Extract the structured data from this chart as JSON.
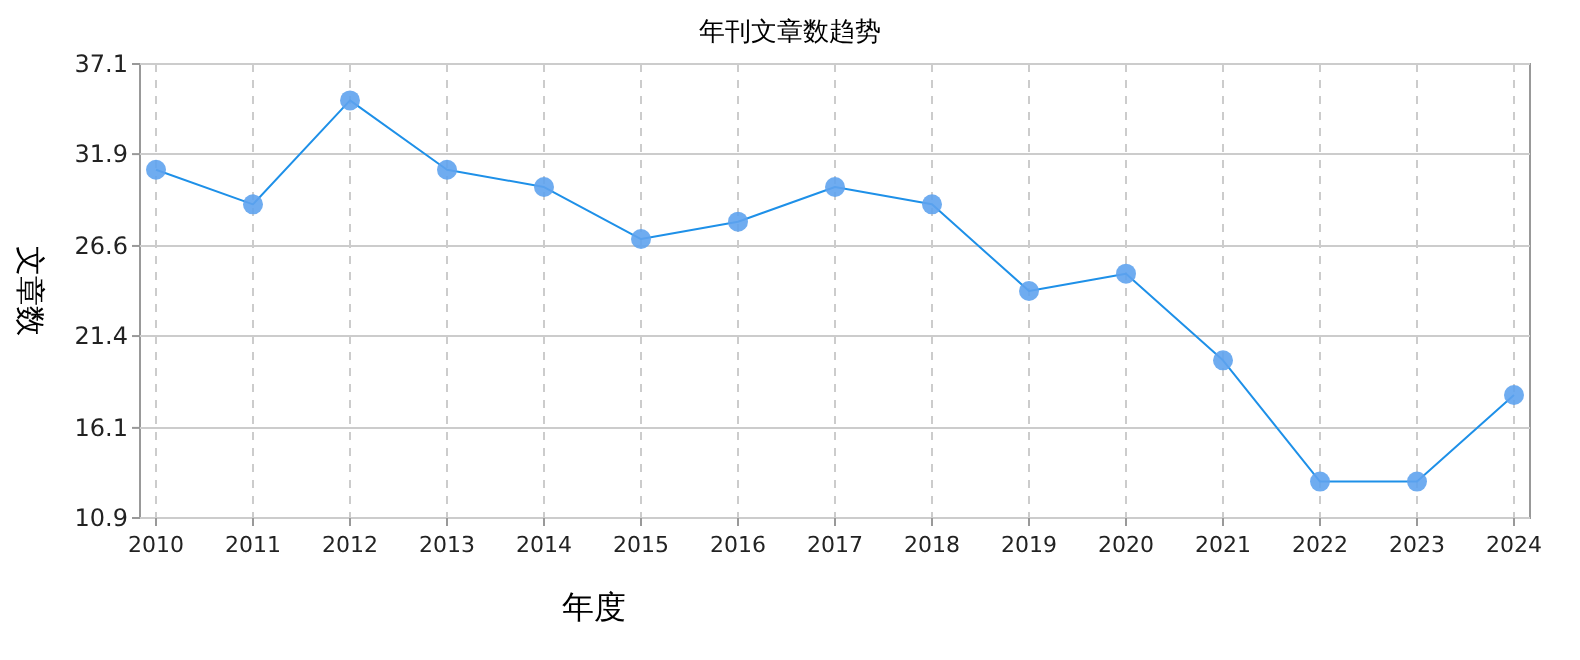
{
  "chart_data": {
    "type": "line",
    "title": "年刊文章数趋势",
    "xlabel": "年度",
    "ylabel": "文章数",
    "categories": [
      "2010",
      "2011",
      "2012",
      "2013",
      "2014",
      "2015",
      "2016",
      "2017",
      "2018",
      "2019",
      "2020",
      "2021",
      "2022",
      "2023",
      "2024"
    ],
    "series": [
      {
        "color": "#1e90e8",
        "values": [
          31,
          29,
          35,
          31,
          30,
          27,
          28,
          30,
          29,
          24,
          25,
          20,
          13,
          13,
          18
        ]
      }
    ],
    "ylim": [
      10.9,
      37.1
    ],
    "yticks": [
      10.9,
      16.1,
      21.4,
      26.6,
      31.9,
      37.1
    ],
    "grid": true,
    "marker": "circle",
    "line_style": "solid"
  }
}
